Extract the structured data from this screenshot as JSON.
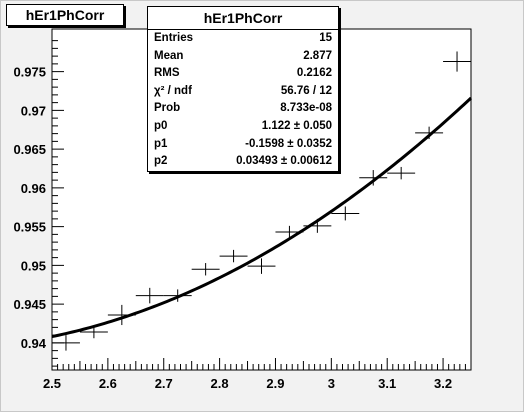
{
  "title": "hEr1PhCorr",
  "stats": {
    "title": "hEr1PhCorr",
    "rows": [
      {
        "label": "Entries",
        "value": "15"
      },
      {
        "label": "Mean",
        "value": "2.877"
      },
      {
        "label": "RMS",
        "value": "0.2162"
      },
      {
        "label": "χ² / ndf",
        "value": "56.76 / 12"
      },
      {
        "label": "Prob",
        "value": "8.733e-08"
      },
      {
        "label": "p0",
        "value": "1.122 ± 0.050"
      },
      {
        "label": "p1",
        "value": "-0.1598 ± 0.0352"
      },
      {
        "label": "p2",
        "value": "0.03493 ± 0.00612"
      }
    ]
  },
  "colors": {
    "frame_bg": "#f2f2f2",
    "plot_bg": "#ffffff",
    "ink": "#000000"
  },
  "chart_data": {
    "type": "scatter",
    "title": "hEr1PhCorr",
    "xlabel": "",
    "ylabel": "",
    "xlim": [
      2.5,
      3.25
    ],
    "ylim": [
      0.9365,
      0.9805
    ],
    "x_ticks": [
      2.5,
      2.6,
      2.7,
      2.8,
      2.9,
      3.0,
      3.1,
      3.2
    ],
    "x_tick_labels": [
      "2.5",
      "2.6",
      "2.7",
      "2.8",
      "2.9",
      "3",
      "3.1",
      "3.2"
    ],
    "y_ticks": [
      0.94,
      0.945,
      0.95,
      0.955,
      0.96,
      0.965,
      0.97,
      0.975
    ],
    "y_tick_labels": [
      "0.94",
      "0.945",
      "0.95",
      "0.955",
      "0.96",
      "0.965",
      "0.97",
      "0.975"
    ],
    "bin_width": 0.05,
    "points": [
      {
        "x": 2.525,
        "y": 0.94,
        "err": 0.001
      },
      {
        "x": 2.575,
        "y": 0.9414,
        "err": 0.0008
      },
      {
        "x": 2.625,
        "y": 0.9436,
        "err": 0.0013
      },
      {
        "x": 2.675,
        "y": 0.9461,
        "err": 0.001
      },
      {
        "x": 2.725,
        "y": 0.9461,
        "err": 0.0008
      },
      {
        "x": 2.775,
        "y": 0.9495,
        "err": 0.0008
      },
      {
        "x": 2.825,
        "y": 0.9512,
        "err": 0.0008
      },
      {
        "x": 2.875,
        "y": 0.9499,
        "err": 0.001
      },
      {
        "x": 2.925,
        "y": 0.9543,
        "err": 0.0008
      },
      {
        "x": 2.975,
        "y": 0.9551,
        "err": 0.0009
      },
      {
        "x": 3.025,
        "y": 0.9567,
        "err": 0.0009
      },
      {
        "x": 3.075,
        "y": 0.9613,
        "err": 0.001
      },
      {
        "x": 3.125,
        "y": 0.9619,
        "err": 0.0008
      },
      {
        "x": 3.175,
        "y": 0.9671,
        "err": 0.0008
      },
      {
        "x": 3.225,
        "y": 0.9763,
        "err": 0.0013
      }
    ],
    "fit": {
      "function": "p0 + p1*x + p2*x^2",
      "p0": 1.122,
      "p1": -0.1598,
      "p2": 0.03493,
      "x_range": [
        2.5,
        3.25
      ]
    },
    "grid": false,
    "legend": "top-center"
  }
}
